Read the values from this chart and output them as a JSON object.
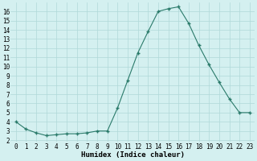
{
  "x": [
    0,
    1,
    2,
    3,
    4,
    5,
    6,
    7,
    8,
    9,
    10,
    11,
    12,
    13,
    14,
    15,
    16,
    17,
    18,
    19,
    20,
    21,
    22,
    23
  ],
  "y": [
    4.0,
    3.2,
    2.8,
    2.5,
    2.6,
    2.7,
    2.7,
    2.8,
    3.0,
    3.0,
    5.5,
    8.5,
    11.5,
    13.8,
    16.0,
    16.3,
    16.5,
    14.7,
    12.3,
    10.2,
    8.3,
    6.5,
    5.0,
    5.0
  ],
  "bg_color": "#d4f0f0",
  "line_color": "#2a7a6a",
  "marker_color": "#2a7a6a",
  "grid_color": "#b0d8d8",
  "xlabel": "Humidex (Indice chaleur)",
  "xlim": [
    -0.5,
    23.5
  ],
  "ylim": [
    1.8,
    17.0
  ],
  "xticks": [
    0,
    1,
    2,
    3,
    4,
    5,
    6,
    7,
    8,
    9,
    10,
    11,
    12,
    13,
    14,
    15,
    16,
    17,
    18,
    19,
    20,
    21,
    22,
    23
  ],
  "yticks": [
    2,
    3,
    4,
    5,
    6,
    7,
    8,
    9,
    10,
    11,
    12,
    13,
    14,
    15,
    16
  ],
  "tick_fontsize": 5.5,
  "label_fontsize": 6.5
}
